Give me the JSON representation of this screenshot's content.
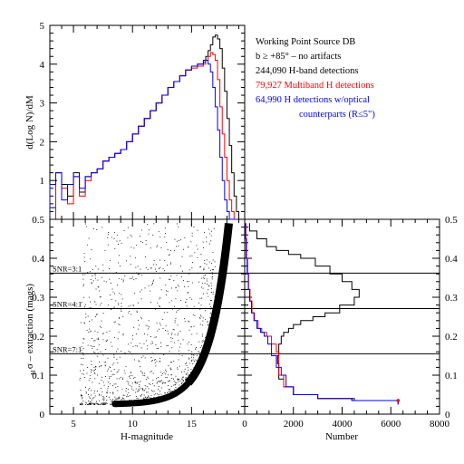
{
  "chart_data": [
    {
      "type": "line",
      "panel": "top",
      "ylabel": "d(Log N)/dM",
      "xlim": [
        3,
        19.5
      ],
      "ylim": [
        0,
        5
      ],
      "yticks": [
        "0",
        "1",
        "2",
        "3",
        "4",
        "5"
      ],
      "legend": [
        {
          "text": "Working Point Source DB",
          "color": "#000000"
        },
        {
          "text": "b ≥ +85° – no artifacts",
          "color": "#000000"
        },
        {
          "text": "244,090 H-band detections",
          "color": "#000000"
        },
        {
          "text": "79,927 Multiband H detections",
          "color": "#ff0000"
        },
        {
          "text": "64,990 H detections w/optical",
          "color": "#0000ff"
        },
        {
          "text": "counterparts (R≤5\")",
          "color": "#0000ff"
        }
      ],
      "series": [
        {
          "color": "#000000",
          "x": [
            3.0,
            3.5,
            4.0,
            4.5,
            5.0,
            5.5,
            6.0,
            6.5,
            7.0,
            7.5,
            8.0,
            8.5,
            9.0,
            9.5,
            10.0,
            10.5,
            11.0,
            11.5,
            12.0,
            12.5,
            13.0,
            13.5,
            14.0,
            14.5,
            15.0,
            15.5,
            16.0,
            16.2,
            16.4,
            16.6,
            16.8,
            17.0,
            17.2,
            17.4,
            17.6,
            17.8,
            18.0,
            18.2,
            18.4,
            18.6,
            18.8,
            19.0
          ],
          "y": [
            0.3,
            1.2,
            0.9,
            0.6,
            1.2,
            0.7,
            1.1,
            1.2,
            1.3,
            1.5,
            1.6,
            1.7,
            1.8,
            2.0,
            2.2,
            2.4,
            2.6,
            2.8,
            3.0,
            3.2,
            3.4,
            3.55,
            3.7,
            3.85,
            3.95,
            4.0,
            4.1,
            4.2,
            4.35,
            4.5,
            4.7,
            4.75,
            4.65,
            4.4,
            3.9,
            3.3,
            2.6,
            1.9,
            1.2,
            0.6,
            0.2,
            0.0
          ]
        },
        {
          "color": "#ff0000",
          "x": [
            3.0,
            3.5,
            4.0,
            4.5,
            5.0,
            5.5,
            6.0,
            6.5,
            7.0,
            7.5,
            8.0,
            8.5,
            9.0,
            9.5,
            10.0,
            10.5,
            11.0,
            11.5,
            12.0,
            12.5,
            13.0,
            13.5,
            14.0,
            14.5,
            15.0,
            15.5,
            16.0,
            16.2,
            16.4,
            16.6,
            16.8,
            17.0,
            17.2,
            17.4,
            17.6,
            17.8,
            18.0,
            18.2,
            18.4,
            18.6,
            18.8,
            19.0
          ],
          "y": [
            0.0,
            1.2,
            0.8,
            0.4,
            1.1,
            0.6,
            1.0,
            1.2,
            1.3,
            1.5,
            1.6,
            1.7,
            1.8,
            2.0,
            2.2,
            2.4,
            2.6,
            2.8,
            3.0,
            3.2,
            3.4,
            3.55,
            3.7,
            3.85,
            3.9,
            3.95,
            4.0,
            4.1,
            4.2,
            4.3,
            4.25,
            4.1,
            3.6,
            2.9,
            2.2,
            1.6,
            1.0,
            0.5,
            0.2,
            0.0,
            0.0,
            0.0
          ]
        },
        {
          "color": "#0000ff",
          "x": [
            3.0,
            3.5,
            4.0,
            4.5,
            5.0,
            5.5,
            6.0,
            6.5,
            7.0,
            7.5,
            8.0,
            8.5,
            9.0,
            9.5,
            10.0,
            10.5,
            11.0,
            11.5,
            12.0,
            12.5,
            13.0,
            13.5,
            14.0,
            14.5,
            15.0,
            15.5,
            16.0,
            16.2,
            16.4,
            16.6,
            16.8,
            17.0,
            17.2,
            17.4,
            17.6,
            17.8,
            18.0,
            18.2,
            18.4,
            18.6,
            18.8,
            19.0
          ],
          "y": [
            0.9,
            1.2,
            0.5,
            0.9,
            1.1,
            0.8,
            1.1,
            1.2,
            1.3,
            1.5,
            1.6,
            1.7,
            1.8,
            2.0,
            2.2,
            2.4,
            2.6,
            2.8,
            3.0,
            3.2,
            3.4,
            3.55,
            3.7,
            3.85,
            3.95,
            4.0,
            4.05,
            4.1,
            4.0,
            3.8,
            3.4,
            2.9,
            2.3,
            1.6,
            1.0,
            0.5,
            0.2,
            0.0,
            0.0,
            0.0,
            0.0,
            0.0
          ]
        }
      ]
    },
    {
      "type": "scatter",
      "panel": "bottom-left",
      "xlabel": "H-magnitude",
      "ylabel": "σ – extraction (mags)",
      "ylabel_sub": "H",
      "xlim": [
        3,
        19.5
      ],
      "ylim": [
        0,
        0.5
      ],
      "xticks": [
        5,
        10,
        15
      ],
      "yticks": [
        "0",
        "0.1",
        "0.2",
        "0.3",
        "0.4",
        "0.5"
      ],
      "snr_lines": [
        {
          "label": "SNR=3:1",
          "y": 0.362
        },
        {
          "label": "SNR=4:1",
          "y": 0.271
        },
        {
          "label": "SNR=7:1",
          "y": 0.155
        }
      ]
    },
    {
      "type": "line",
      "panel": "bottom-right",
      "xlabel": "Number",
      "xlim": [
        0,
        8000
      ],
      "ylim": [
        0,
        0.5
      ],
      "xticks": [
        "0",
        "2000",
        "4000",
        "6000",
        "8000"
      ],
      "yticks": [
        "0",
        "0.1",
        "0.2",
        "0.3",
        "0.4",
        "0.5"
      ],
      "series": [
        {
          "color": "#000000",
          "x": [
            200,
            500,
            900,
            1300,
            1800,
            2300,
            2900,
            3500,
            4000,
            4400,
            4700,
            4500,
            3900,
            3300,
            2800,
            2300,
            2000,
            1800,
            1600,
            1500,
            1400,
            1400,
            1350,
            1400,
            1400,
            1600,
            2000,
            3000,
            4500,
            6300
          ],
          "y": [
            0.49,
            0.47,
            0.45,
            0.43,
            0.42,
            0.41,
            0.4,
            0.38,
            0.36,
            0.34,
            0.32,
            0.3,
            0.28,
            0.26,
            0.25,
            0.24,
            0.23,
            0.22,
            0.21,
            0.2,
            0.18,
            0.16,
            0.15,
            0.13,
            0.11,
            0.09,
            0.07,
            0.05,
            0.04,
            0.035
          ]
        },
        {
          "color": "#ff0000",
          "x": [
            50,
            80,
            120,
            160,
            220,
            300,
            400,
            550,
            700,
            900,
            1100,
            1300,
            1400,
            1400,
            1400,
            1600,
            2000,
            3000,
            4400,
            6300
          ],
          "y": [
            0.49,
            0.45,
            0.4,
            0.36,
            0.32,
            0.29,
            0.26,
            0.24,
            0.22,
            0.21,
            0.2,
            0.18,
            0.16,
            0.14,
            0.12,
            0.1,
            0.07,
            0.05,
            0.04,
            0.035
          ]
        },
        {
          "color": "#0000ff",
          "x": [
            30,
            60,
            100,
            150,
            200,
            280,
            380,
            500,
            650,
            800,
            950,
            1100,
            1300,
            1500,
            1700,
            2000,
            3000,
            4400,
            6300
          ],
          "y": [
            0.49,
            0.45,
            0.4,
            0.36,
            0.32,
            0.29,
            0.26,
            0.24,
            0.22,
            0.21,
            0.2,
            0.18,
            0.15,
            0.12,
            0.1,
            0.07,
            0.05,
            0.04,
            0.035
          ]
        }
      ]
    }
  ]
}
